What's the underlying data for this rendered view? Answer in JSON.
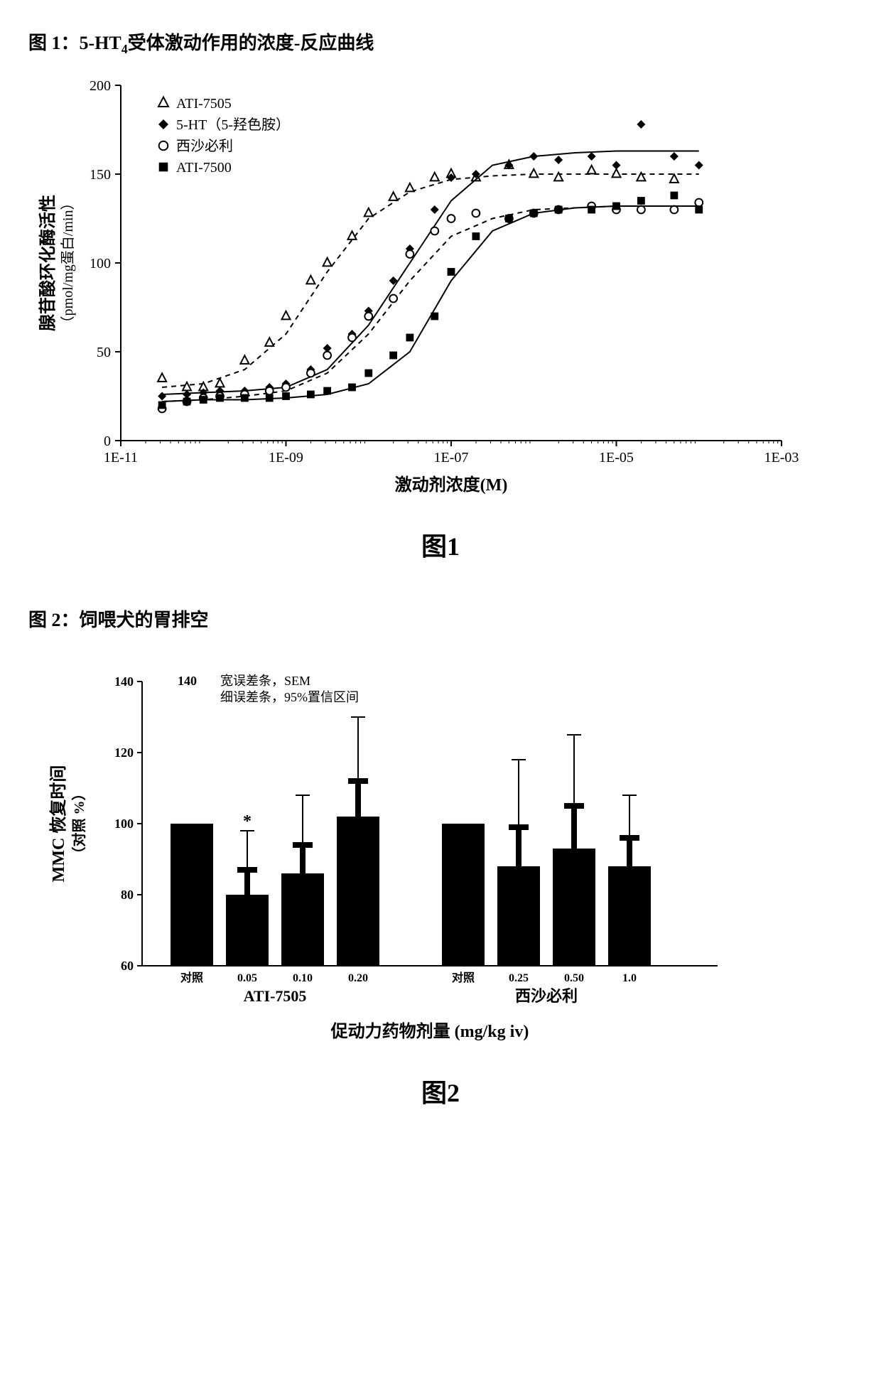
{
  "figure1": {
    "title_prefix": "图 1：5-HT",
    "title_sub": "4",
    "title_suffix": "受体激动作用的浓度-反应曲线",
    "caption": "图1",
    "type": "scatter-line",
    "ylabel_line1": "腺苷酸环化酶活性",
    "ylabel_line2": "（pmol/mg蛋白/min）",
    "xlabel": "激动剂浓度(M)",
    "ylim": [
      0,
      200
    ],
    "yticks": [
      0,
      50,
      100,
      150,
      200
    ],
    "xlim_log": [
      -11,
      -3
    ],
    "xticks_labels": [
      "1E-11",
      "1E-09",
      "1E-07",
      "1E-05",
      "1E-03"
    ],
    "xticks_log": [
      -11,
      -9,
      -7,
      -5,
      -3
    ],
    "tick_fontsize": 20,
    "label_fontsize": 24,
    "legend_fontsize": 20,
    "background_color": "#ffffff",
    "axis_color": "#000000",
    "legend": [
      {
        "label": "ATI-7505",
        "marker": "triangle-open",
        "color": "#000000",
        "line_dash": "dash"
      },
      {
        "label": "5-HT（5-羟色胺）",
        "marker": "diamond-fill",
        "color": "#000000",
        "line_dash": "solid"
      },
      {
        "label": "西沙必利",
        "marker": "circle-open",
        "color": "#000000",
        "line_dash": "dash"
      },
      {
        "label": "ATI-7500",
        "marker": "square-fill",
        "color": "#000000",
        "line_dash": "solid"
      }
    ],
    "series": {
      "ATI-7505": {
        "marker": "triangle-open",
        "dash": "6,5",
        "line_width": 2,
        "x": [
          -10.5,
          -10.2,
          -10.0,
          -9.8,
          -9.5,
          -9.2,
          -9.0,
          -8.7,
          -8.5,
          -8.2,
          -8.0,
          -7.7,
          -7.5,
          -7.2,
          -7.0,
          -6.7,
          -6.3,
          -6.0,
          -5.7,
          -5.3,
          -5.0,
          -4.7,
          -4.3
        ],
        "y": [
          35,
          30,
          30,
          32,
          45,
          55,
          70,
          90,
          100,
          115,
          128,
          137,
          142,
          148,
          150,
          148,
          155,
          150,
          148,
          152,
          150,
          148,
          147
        ],
        "fit_x": [
          -10.5,
          -10,
          -9.5,
          -9,
          -8.5,
          -8,
          -7.5,
          -7,
          -6.5,
          -6,
          -5.5,
          -5,
          -4.5,
          -4
        ],
        "fit_y": [
          30,
          32,
          40,
          60,
          95,
          125,
          140,
          147,
          149,
          150,
          150,
          150,
          150,
          150
        ]
      },
      "5-HT": {
        "marker": "diamond-fill",
        "dash": "",
        "line_width": 2,
        "x": [
          -10.5,
          -10.2,
          -10.0,
          -9.8,
          -9.5,
          -9.2,
          -9.0,
          -8.7,
          -8.5,
          -8.2,
          -8.0,
          -7.7,
          -7.5,
          -7.2,
          -7.0,
          -6.7,
          -6.3,
          -6.0,
          -5.7,
          -5.3,
          -5.0,
          -4.7,
          -4.3,
          -4.0
        ],
        "y": [
          25,
          26,
          27,
          28,
          28,
          30,
          32,
          40,
          52,
          60,
          73,
          90,
          108,
          130,
          148,
          150,
          155,
          160,
          158,
          160,
          155,
          178,
          160,
          155
        ],
        "fit_x": [
          -10.5,
          -10,
          -9.5,
          -9,
          -8.5,
          -8,
          -7.5,
          -7,
          -6.5,
          -6,
          -5.5,
          -5,
          -4.5,
          -4
        ],
        "fit_y": [
          26,
          27,
          28,
          30,
          40,
          65,
          100,
          135,
          155,
          160,
          162,
          163,
          163,
          163
        ]
      },
      "cisapride": {
        "marker": "circle-open",
        "dash": "6,5",
        "line_width": 2,
        "x": [
          -10.5,
          -10.2,
          -10.0,
          -9.8,
          -9.5,
          -9.2,
          -9.0,
          -8.7,
          -8.5,
          -8.2,
          -8.0,
          -7.7,
          -7.5,
          -7.2,
          -7.0,
          -6.7,
          -6.3,
          -6.0,
          -5.7,
          -5.3,
          -5.0,
          -4.7,
          -4.3,
          -4.0
        ],
        "y": [
          18,
          22,
          24,
          25,
          26,
          28,
          30,
          38,
          48,
          58,
          70,
          80,
          105,
          118,
          125,
          128,
          125,
          128,
          130,
          132,
          130,
          130,
          130,
          134
        ],
        "fit_x": [
          -10.5,
          -10,
          -9.5,
          -9,
          -8.5,
          -8,
          -7.5,
          -7,
          -6.5,
          -6,
          -5.5,
          -5,
          -4.5,
          -4
        ],
        "fit_y": [
          22,
          23,
          25,
          28,
          38,
          60,
          90,
          115,
          125,
          130,
          131,
          132,
          132,
          132
        ]
      },
      "ATI-7500": {
        "marker": "square-fill",
        "dash": "",
        "line_width": 2,
        "x": [
          -10.5,
          -10.2,
          -10.0,
          -9.8,
          -9.5,
          -9.2,
          -9.0,
          -8.7,
          -8.5,
          -8.2,
          -8.0,
          -7.7,
          -7.5,
          -7.2,
          -7.0,
          -6.7,
          -6.3,
          -6.0,
          -5.7,
          -5.3,
          -5.0,
          -4.7,
          -4.3,
          -4.0
        ],
        "y": [
          20,
          22,
          23,
          24,
          24,
          24,
          25,
          26,
          28,
          30,
          38,
          48,
          58,
          70,
          95,
          115,
          125,
          128,
          130,
          130,
          132,
          135,
          138,
          130
        ],
        "fit_x": [
          -10.5,
          -10,
          -9.5,
          -9,
          -8.5,
          -8,
          -7.5,
          -7,
          -6.5,
          -6,
          -5.5,
          -5,
          -4.5,
          -4
        ],
        "fit_y": [
          22,
          23,
          23,
          24,
          26,
          32,
          50,
          90,
          118,
          128,
          131,
          132,
          132,
          132
        ]
      }
    }
  },
  "figure2": {
    "title": "图 2：饲喂犬的胃排空",
    "caption": "图2",
    "type": "bar",
    "note_line1": "宽误差条，SEM",
    "note_line2": "细误差条，95%置信区间",
    "note_heading": "140",
    "ylabel_line1": "MMC 恢复时间",
    "ylabel_line2": "（对照 %）",
    "xlabel": "促动力药物剂量 (mg/kg iv)",
    "ylim": [
      60,
      140
    ],
    "yticks": [
      60,
      80,
      100,
      120,
      140
    ],
    "ytick_labels": [
      "60",
      "80",
      "100",
      "120",
      "140"
    ],
    "tick_fontsize": 18,
    "label_fontsize": 24,
    "bar_color": "#000000",
    "background_color": "#ffffff",
    "axis_color": "#000000",
    "bar_width": 0.7,
    "groups": [
      {
        "name": "ATI-7505",
        "bars": [
          {
            "label": "对照",
            "value": 100,
            "sem": 0,
            "ci": 0,
            "star": false
          },
          {
            "label": "0.05",
            "value": 80,
            "sem": 7,
            "ci": 18,
            "star": true
          },
          {
            "label": "0.10",
            "value": 86,
            "sem": 8,
            "ci": 22,
            "star": false
          },
          {
            "label": "0.20",
            "value": 102,
            "sem": 10,
            "ci": 28,
            "star": false
          }
        ]
      },
      {
        "name": "西沙必利",
        "bars": [
          {
            "label": "对照",
            "value": 100,
            "sem": 0,
            "ci": 0,
            "star": false
          },
          {
            "label": "0.25",
            "value": 88,
            "sem": 11,
            "ci": 30,
            "star": false
          },
          {
            "label": "0.50",
            "value": 93,
            "sem": 12,
            "ci": 32,
            "star": false
          },
          {
            "label": "1.0",
            "value": 88,
            "sem": 8,
            "ci": 20,
            "star": false
          }
        ]
      }
    ]
  }
}
